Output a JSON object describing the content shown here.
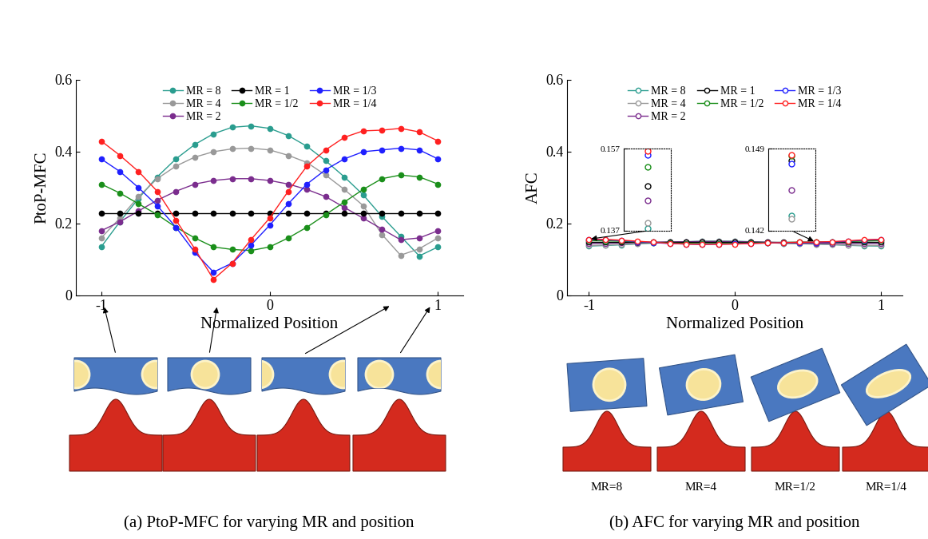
{
  "chart_data": [
    {
      "type": "line",
      "xlabel": "Normalized Position",
      "ylabel": "PtoP-MFC",
      "caption": "(a) PtoP-MFC for varying MR and position",
      "x": [
        -1,
        -0.889,
        -0.778,
        -0.667,
        -0.556,
        -0.444,
        -0.333,
        -0.222,
        -0.111,
        0,
        0.111,
        0.222,
        0.333,
        0.444,
        0.556,
        0.667,
        0.778,
        0.889,
        1
      ],
      "xlim": [
        -1.15,
        1.15
      ],
      "xticks": [
        -1,
        0,
        1
      ],
      "ylim": [
        0,
        0.6
      ],
      "yticks": [
        0,
        0.2,
        0.4,
        0.6
      ],
      "legend": "upper center",
      "marker": "circle",
      "series": [
        {
          "name": "MR = 8",
          "color": "#2a9d8f",
          "values": [
            0.135,
            0.205,
            0.27,
            0.33,
            0.38,
            0.42,
            0.45,
            0.468,
            0.472,
            0.465,
            0.445,
            0.415,
            0.375,
            0.33,
            0.28,
            0.22,
            0.165,
            0.11,
            0.135
          ]
        },
        {
          "name": "MR = 4",
          "color": "#999999",
          "values": [
            0.16,
            0.215,
            0.275,
            0.325,
            0.36,
            0.385,
            0.4,
            0.408,
            0.41,
            0.405,
            0.39,
            0.37,
            0.335,
            0.295,
            0.25,
            0.17,
            0.112,
            0.13,
            0.16
          ]
        },
        {
          "name": "MR = 2",
          "color": "#7b2d8e",
          "values": [
            0.18,
            0.205,
            0.235,
            0.265,
            0.29,
            0.31,
            0.32,
            0.325,
            0.325,
            0.32,
            0.31,
            0.295,
            0.275,
            0.245,
            0.215,
            0.185,
            0.155,
            0.16,
            0.18
          ]
        },
        {
          "name": "MR = 1",
          "color": "#000000",
          "values": [
            0.228,
            0.228,
            0.228,
            0.228,
            0.228,
            0.228,
            0.228,
            0.228,
            0.228,
            0.228,
            0.228,
            0.228,
            0.228,
            0.228,
            0.228,
            0.228,
            0.228,
            0.228,
            0.228
          ]
        },
        {
          "name": "MR = 1/2",
          "color": "#1a8f1a",
          "values": [
            0.31,
            0.285,
            0.255,
            0.225,
            0.19,
            0.16,
            0.135,
            0.128,
            0.125,
            0.135,
            0.16,
            0.19,
            0.225,
            0.26,
            0.295,
            0.325,
            0.335,
            0.33,
            0.31
          ]
        },
        {
          "name": "MR = 1/3",
          "color": "#1f1fff",
          "values": [
            0.38,
            0.345,
            0.3,
            0.25,
            0.19,
            0.12,
            0.065,
            0.09,
            0.14,
            0.195,
            0.255,
            0.31,
            0.35,
            0.38,
            0.4,
            0.405,
            0.41,
            0.405,
            0.38
          ]
        },
        {
          "name": "MR = 1/4",
          "color": "#ff2020",
          "values": [
            0.43,
            0.39,
            0.345,
            0.29,
            0.21,
            0.13,
            0.045,
            0.09,
            0.155,
            0.215,
            0.29,
            0.36,
            0.405,
            0.44,
            0.458,
            0.46,
            0.465,
            0.455,
            0.43
          ]
        }
      ]
    },
    {
      "type": "line",
      "xlabel": "Normalized Position",
      "ylabel": "AFC",
      "caption": "(b) AFC for varying MR and position",
      "image_labels": [
        "MR=8",
        "MR=4",
        "MR=1/2",
        "MR=1/4"
      ],
      "x": [
        -1,
        -0.889,
        -0.778,
        -0.667,
        -0.556,
        -0.444,
        -0.333,
        -0.222,
        -0.111,
        0,
        0.111,
        0.222,
        0.333,
        0.444,
        0.556,
        0.667,
        0.778,
        0.889,
        1
      ],
      "xlim": [
        -1.15,
        1.15
      ],
      "xticks": [
        -1,
        0,
        1
      ],
      "ylim": [
        0,
        0.6
      ],
      "yticks": [
        0,
        0.2,
        0.4,
        0.6
      ],
      "legend": "upper center",
      "marker": "hollow_circle",
      "insets": [
        {
          "x": -1,
          "ylim": [
            0.137,
            0.157
          ],
          "yticks": [
            0.137,
            0.157
          ]
        },
        {
          "x": 0.556,
          "ylim": [
            0.142,
            0.149
          ],
          "yticks": [
            0.142,
            0.149
          ]
        }
      ],
      "series": [
        {
          "name": "MR = 8",
          "color": "#2a9d8f",
          "values": [
            0.1375,
            0.139,
            0.141,
            0.1435,
            0.146,
            0.148,
            0.1495,
            0.151,
            0.1515,
            0.151,
            0.1495,
            0.1475,
            0.1455,
            0.144,
            0.1433,
            0.1415,
            0.1395,
            0.138,
            0.1375
          ]
        },
        {
          "name": "MR = 4",
          "color": "#999999",
          "values": [
            0.139,
            0.14,
            0.142,
            0.144,
            0.146,
            0.148,
            0.1495,
            0.1505,
            0.151,
            0.1505,
            0.149,
            0.147,
            0.145,
            0.1435,
            0.143,
            0.1415,
            0.14,
            0.1392,
            0.139
          ]
        },
        {
          "name": "MR = 2",
          "color": "#7b2d8e",
          "values": [
            0.1445,
            0.145,
            0.146,
            0.147,
            0.148,
            0.149,
            0.1495,
            0.15,
            0.15,
            0.1495,
            0.149,
            0.148,
            0.147,
            0.146,
            0.1455,
            0.145,
            0.1445,
            0.1443,
            0.1445
          ]
        },
        {
          "name": "MR = 1",
          "color": "#000000",
          "values": [
            0.148,
            0.148,
            0.148,
            0.148,
            0.148,
            0.148,
            0.148,
            0.148,
            0.148,
            0.148,
            0.148,
            0.148,
            0.148,
            0.148,
            0.148,
            0.148,
            0.148,
            0.148,
            0.148
          ]
        },
        {
          "name": "MR = 1/2",
          "color": "#1a8f1a",
          "values": [
            0.1525,
            0.152,
            0.151,
            0.149,
            0.147,
            0.146,
            0.145,
            0.1445,
            0.145,
            0.1455,
            0.146,
            0.147,
            0.1475,
            0.148,
            0.1484,
            0.149,
            0.15,
            0.1515,
            0.1525
          ]
        },
        {
          "name": "MR = 1/3",
          "color": "#1f1fff",
          "values": [
            0.1555,
            0.155,
            0.153,
            0.15,
            0.147,
            0.1445,
            0.143,
            0.1425,
            0.143,
            0.1435,
            0.145,
            0.146,
            0.147,
            0.1475,
            0.1477,
            0.149,
            0.151,
            0.154,
            0.1555
          ]
        },
        {
          "name": "MR = 1/4",
          "color": "#ff2020",
          "values": [
            0.1565,
            0.156,
            0.154,
            0.151,
            0.148,
            0.145,
            0.143,
            0.142,
            0.1425,
            0.143,
            0.1445,
            0.146,
            0.147,
            0.148,
            0.1485,
            0.15,
            0.152,
            0.155,
            0.1565
          ]
        }
      ]
    }
  ]
}
